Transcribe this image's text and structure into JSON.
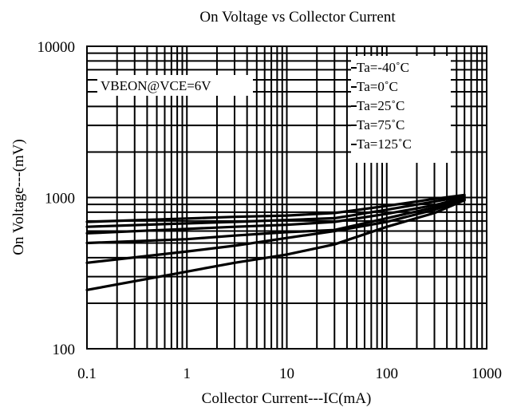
{
  "chart_data": {
    "type": "line",
    "title": "On Voltage vs Collector Current",
    "xlabel": "Collector Current---IC(mA)",
    "ylabel": "On Voltage---(mV)",
    "x_scale": "log",
    "y_scale": "log",
    "xlim": [
      0.1,
      1000
    ],
    "ylim": [
      100,
      10000
    ],
    "grid": true,
    "x_ticks": [
      0.1,
      1,
      10,
      100,
      1000
    ],
    "x_tick_labels": [
      "0.1",
      "1",
      "10",
      "100",
      "1000"
    ],
    "y_ticks": [
      100,
      1000,
      10000
    ],
    "y_tick_labels": [
      "100",
      "1000",
      "10000"
    ],
    "annotation": "VBEON@VCE=6V",
    "legend_position": "top-right",
    "series": [
      {
        "name": "Ta=-40˚C",
        "x": [
          0.1,
          0.7,
          3,
          10,
          30,
          100,
          300,
          600
        ],
        "y": [
          690,
          720,
          745,
          760,
          790,
          880,
          980,
          1040
        ]
      },
      {
        "name": "Ta=0˚C",
        "x": [
          0.1,
          0.7,
          3,
          10,
          30,
          100,
          300,
          600
        ],
        "y": [
          640,
          670,
          690,
          710,
          730,
          830,
          940,
          1020
        ]
      },
      {
        "name": "Ta=25˚C",
        "x": [
          0.1,
          1,
          3,
          10,
          30,
          100,
          300,
          600
        ],
        "y": [
          580,
          620,
          640,
          660,
          690,
          780,
          890,
          1000
        ]
      },
      {
        "name": "Ta=75˚C",
        "x": [
          0.1,
          1,
          3,
          10,
          30,
          100,
          300,
          600
        ],
        "y": [
          500,
          530,
          560,
          590,
          610,
          730,
          860,
          980
        ]
      },
      {
        "name": "Ta=125˚C",
        "x": [
          0.1,
          1,
          3,
          10,
          30,
          100,
          300,
          600
        ],
        "y": [
          370,
          440,
          480,
          540,
          600,
          690,
          830,
          970
        ]
      },
      {
        "name": "",
        "x": [
          0.1,
          0.7,
          3,
          10,
          30,
          100,
          300,
          600
        ],
        "y": [
          245,
          310,
          370,
          420,
          490,
          640,
          790,
          960
        ]
      }
    ]
  }
}
